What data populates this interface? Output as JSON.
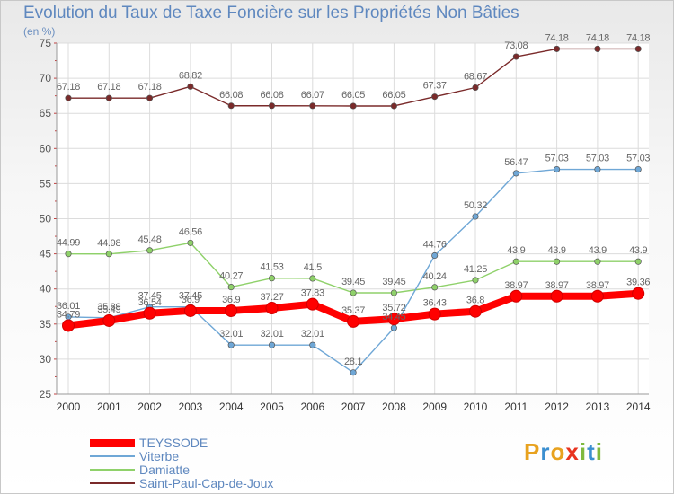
{
  "title": "Evolution du Taux de Taxe Foncière sur les Propriétés Non Bâties",
  "subtitle": "(en %)",
  "logo": {
    "text": "Proxiti",
    "colors": [
      "#e8a21f",
      "#3b8fd0",
      "#e8a21f",
      "#e8331f",
      "#7fb93e",
      "#3b8fd0",
      "#7fb93e"
    ]
  },
  "chart_data": {
    "type": "line",
    "title": "Evolution du Taux de Taxe Foncière sur les Propriétés Non Bâties",
    "ylabel": "(en %)",
    "xlabel": "",
    "ylim": [
      25,
      75
    ],
    "yticks": [
      "25",
      "30",
      "35",
      "40",
      "45",
      "50",
      "55",
      "60",
      "65",
      "70",
      "75"
    ],
    "x": [
      "2000",
      "2001",
      "2002",
      "2003",
      "2004",
      "2005",
      "2006",
      "2007",
      "2008",
      "2009",
      "2010",
      "2011",
      "2012",
      "2013",
      "2014"
    ],
    "grid": true,
    "legend_position": "bottom-left",
    "series": [
      {
        "name": "Saint-Paul-Cap-de-Joux",
        "color": "#7a2a2a",
        "values": [
          67.18,
          67.18,
          67.18,
          68.82,
          66.08,
          66.08,
          66.07,
          66.05,
          66.05,
          67.37,
          68.67,
          73.08,
          74.18,
          74.18,
          74.18
        ],
        "labels": [
          "67.18",
          "67.18",
          "67.18",
          "68.82",
          "66.08",
          "66.08",
          "66.07",
          "66.05",
          "66.05",
          "67.37",
          "68.67",
          "73.08",
          "74.18",
          "74.18",
          "74.18"
        ]
      },
      {
        "name": "Damiatte",
        "color": "#8fd16a",
        "values": [
          44.99,
          44.98,
          45.48,
          46.56,
          40.27,
          41.53,
          41.5,
          39.45,
          39.45,
          40.24,
          41.25,
          43.9,
          43.9,
          43.9,
          43.9
        ],
        "labels": [
          "44.99",
          "44.98",
          "45.48",
          "46.56",
          "40.27",
          "41.53",
          "41.5",
          "39.45",
          "39.45",
          "40.24",
          "41.25",
          "43.9",
          "43.9",
          "43.9",
          "43.9"
        ]
      },
      {
        "name": "Viterbe",
        "color": "#6fa7d6",
        "values": [
          36.01,
          35.89,
          37.45,
          37.45,
          32.01,
          32.01,
          32.01,
          28.1,
          34.45,
          44.76,
          50.32,
          56.47,
          57.03,
          57.03,
          57.03
        ],
        "labels": [
          "36.01",
          "35.89",
          "37.45",
          "37.45",
          "32.01",
          "32.01",
          "32.01",
          "28.1",
          "34.45",
          "44.76",
          "50.32",
          "56.47",
          "57.03",
          "57.03",
          "57.03"
        ]
      },
      {
        "name": "TEYSSODE",
        "color": "#ff0000",
        "values": [
          34.79,
          35.49,
          36.54,
          36.9,
          36.9,
          37.27,
          37.83,
          35.37,
          35.72,
          36.43,
          36.8,
          38.97,
          38.97,
          38.97,
          39.36
        ],
        "labels": [
          "34.79",
          "35.49",
          "36.54",
          "36.9",
          "36.9",
          "37.27",
          "37.83",
          "35.37",
          "35.72",
          "36.43",
          "36.8",
          "38.97",
          "38.97",
          "38.97",
          "39.36"
        ]
      }
    ]
  }
}
